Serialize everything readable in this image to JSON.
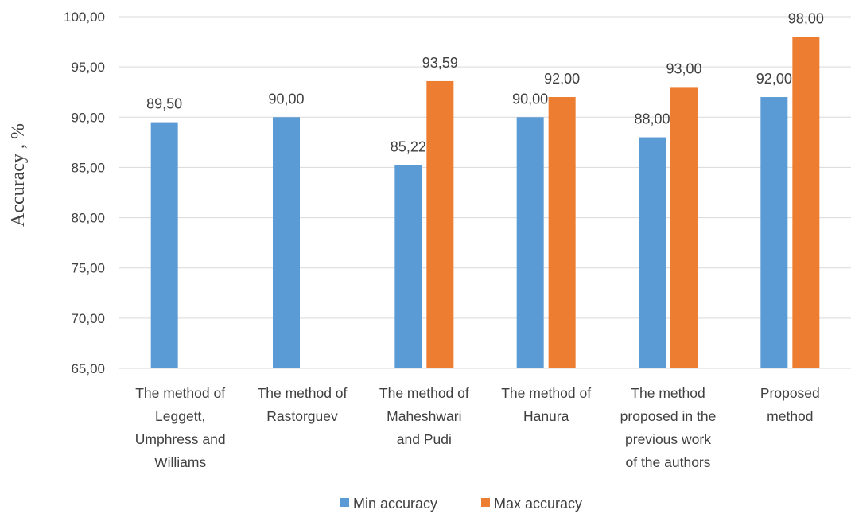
{
  "chart_data": {
    "type": "bar",
    "title": "",
    "xlabel": "",
    "ylabel": "Accuracy , %",
    "ylim": [
      65,
      100
    ],
    "ytick_step": 5,
    "yticks": [
      "65,00",
      "70,00",
      "75,00",
      "80,00",
      "85,00",
      "90,00",
      "95,00",
      "100,00"
    ],
    "grid": true,
    "legend_position": "bottom",
    "categories": [
      [
        "The method of",
        "Leggett,",
        "Umphress and",
        "Williams"
      ],
      [
        "The method of",
        "Rastorguev"
      ],
      [
        "The method of",
        "Maheshwari",
        "and Pudi"
      ],
      [
        "The method of",
        "Hanura"
      ],
      [
        "The method",
        "proposed in the",
        "previous work",
        "of the authors"
      ],
      [
        "Proposed",
        "method"
      ]
    ],
    "series": [
      {
        "name": "Min accuracy",
        "color": "#5B9BD5",
        "values": [
          89.5,
          90.0,
          85.22,
          90.0,
          88.0,
          92.0
        ],
        "labels": [
          "89,50",
          "90,00",
          "85,22",
          "90,00",
          "88,00",
          "92,00"
        ]
      },
      {
        "name": "Max accuracy",
        "color": "#ED7D31",
        "values": [
          null,
          null,
          93.59,
          92.0,
          93.0,
          98.0
        ],
        "labels": [
          "",
          "",
          "93,59",
          "92,00",
          "93,00",
          "98,00"
        ]
      }
    ]
  }
}
